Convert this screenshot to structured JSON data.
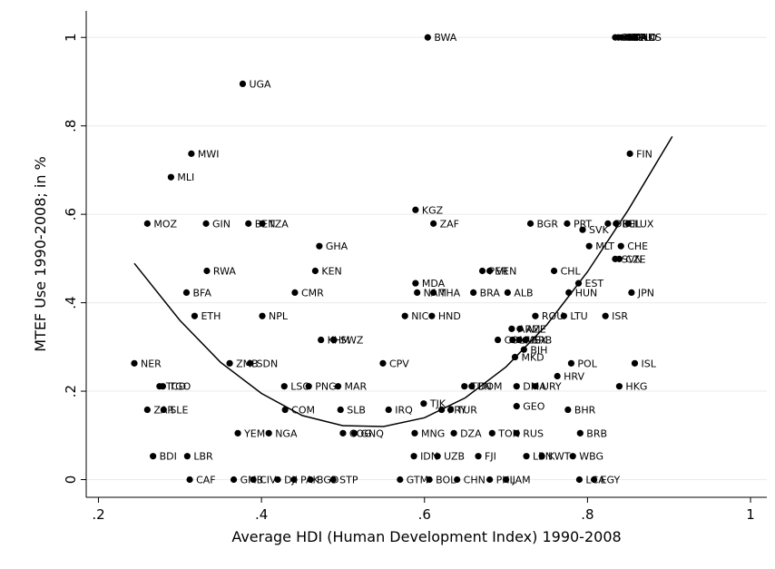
{
  "chart_data": {
    "type": "scatter",
    "x_label": "Average HDI (Human Development Index) 1990-2008",
    "y_label": "MTEF Use 1990-2008; in %",
    "xlim": [
      0.185,
      1.02
    ],
    "ylim": [
      -0.04,
      1.06
    ],
    "xticks": [
      {
        "value": 0.2,
        "label": ".2"
      },
      {
        "value": 0.4,
        "label": ".4"
      },
      {
        "value": 0.6,
        "label": ".6"
      },
      {
        "value": 0.8,
        "label": ".8"
      },
      1
    ],
    "yticks": [
      0,
      {
        "value": 0.2,
        "label": ".2"
      },
      {
        "value": 0.4,
        "label": ".4"
      },
      {
        "value": 0.6,
        "label": ".6"
      },
      {
        "value": 0.8,
        "label": ".8"
      },
      1
    ],
    "grid": true,
    "color": "#000000",
    "line_color": "#000000",
    "labels": [
      "BWA",
      "SGP",
      "GBR",
      "IRL",
      "DNK",
      "NLD",
      "AUS",
      "UGA",
      "MWI",
      "MLI",
      "FIN",
      "KGZ",
      "MOZ",
      "GIN",
      "BEN",
      "TZA",
      "ZAF",
      "BGR",
      "PRT",
      "DEU",
      "BEL",
      "LUX",
      "SVK",
      "GHA",
      "MLT",
      "CHE",
      "RWA",
      "KEN",
      "PER",
      "VEN",
      "CHL",
      "SVN",
      "CZE",
      "MDA",
      "EST",
      "BFA",
      "CMR",
      "NAM",
      "THA",
      "BRA",
      "ALB",
      "HUN",
      "JPN",
      "ETH",
      "NPL",
      "NIC",
      "HND",
      "ROU",
      "LTU",
      "ISR",
      "KHM",
      "SWZ",
      "ARM",
      "AZE",
      "COL",
      "MUS",
      "MEX",
      "SRB",
      "BIH",
      "MKD",
      "NER",
      "ZMB",
      "SDN",
      "CPV",
      "POL",
      "ISL",
      "HRV",
      "TCD",
      "TGO",
      "LSO",
      "PNG",
      "MAR",
      "TUN",
      "DOM",
      "DMA",
      "URY",
      "HKG",
      "ZAR",
      "SLE",
      "COM",
      "SLB",
      "IRQ",
      "PRY",
      "TUR",
      "GEO",
      "BHR",
      "TJK",
      "YEM",
      "NGA",
      "COG",
      "GNQ",
      "MNG",
      "DZA",
      "TON",
      "RUS",
      "BRB",
      "BDI",
      "LBR",
      "IDN",
      "UZB",
      "FJI",
      "LBN",
      "KWT",
      "WBG",
      "CAF",
      "GMB",
      "CIV",
      "DJI",
      "PAK",
      "BGD",
      "STP",
      "GTM",
      "BOL",
      "CHN",
      "PHL",
      "JAM",
      "LCA",
      "EGY"
    ],
    "x": [
      0.604,
      0.834,
      0.838,
      0.842,
      0.848,
      0.852,
      0.858,
      0.377,
      0.314,
      0.289,
      0.852,
      0.589,
      0.26,
      0.332,
      0.384,
      0.401,
      0.611,
      0.73,
      0.775,
      0.825,
      0.835,
      0.85,
      0.794,
      0.471,
      0.802,
      0.841,
      0.333,
      0.466,
      0.671,
      0.68,
      0.759,
      0.834,
      0.839,
      0.589,
      0.789,
      0.308,
      0.441,
      0.591,
      0.611,
      0.66,
      0.702,
      0.777,
      0.854,
      0.318,
      0.401,
      0.576,
      0.609,
      0.736,
      0.771,
      0.822,
      0.473,
      0.489,
      0.707,
      0.717,
      0.69,
      0.708,
      0.716,
      0.724,
      0.722,
      0.711,
      0.244,
      0.361,
      0.386,
      0.549,
      0.78,
      0.858,
      0.763,
      0.275,
      0.279,
      0.428,
      0.458,
      0.494,
      0.649,
      0.658,
      0.713,
      0.736,
      0.839,
      0.26,
      0.28,
      0.429,
      0.497,
      0.556,
      0.621,
      0.632,
      0.713,
      0.776,
      0.599,
      0.371,
      0.409,
      0.5,
      0.514,
      0.588,
      0.636,
      0.683,
      0.713,
      0.791,
      0.267,
      0.309,
      0.587,
      0.616,
      0.666,
      0.725,
      0.744,
      0.782,
      0.312,
      0.366,
      0.39,
      0.42,
      0.44,
      0.46,
      0.488,
      0.57,
      0.606,
      0.64,
      0.68,
      0.7,
      0.79,
      0.808
    ],
    "values": [
      1,
      1,
      1,
      1,
      1,
      1,
      1,
      0.895,
      0.737,
      0.684,
      0.737,
      0.61,
      0.579,
      0.579,
      0.579,
      0.579,
      0.579,
      0.579,
      0.579,
      0.579,
      0.579,
      0.579,
      0.565,
      0.528,
      0.528,
      0.528,
      0.472,
      0.472,
      0.472,
      0.472,
      0.472,
      0.499,
      0.499,
      0.444,
      0.444,
      0.423,
      0.423,
      0.423,
      0.423,
      0.423,
      0.423,
      0.423,
      0.423,
      0.37,
      0.37,
      0.37,
      0.37,
      0.37,
      0.37,
      0.37,
      0.316,
      0.316,
      0.341,
      0.341,
      0.316,
      0.316,
      0.316,
      0.316,
      0.294,
      0.277,
      0.263,
      0.263,
      0.263,
      0.263,
      0.263,
      0.263,
      0.234,
      0.211,
      0.211,
      0.211,
      0.211,
      0.211,
      0.211,
      0.211,
      0.211,
      0.211,
      0.211,
      0.158,
      0.158,
      0.158,
      0.158,
      0.158,
      0.158,
      0.158,
      0.166,
      0.158,
      0.172,
      0.105,
      0.105,
      0.105,
      0.105,
      0.105,
      0.105,
      0.105,
      0.105,
      0.105,
      0.053,
      0.053,
      0.053,
      0.053,
      0.053,
      0.053,
      0.053,
      0.053,
      0,
      0,
      0,
      0,
      0,
      0,
      0,
      0,
      0,
      0,
      0,
      0,
      0,
      0
    ],
    "fit": {
      "x": [
        0.244,
        0.3,
        0.35,
        0.4,
        0.45,
        0.5,
        0.55,
        0.6,
        0.65,
        0.7,
        0.75,
        0.8,
        0.85,
        0.904
      ],
      "y": [
        0.489,
        0.36,
        0.265,
        0.195,
        0.145,
        0.122,
        0.12,
        0.14,
        0.185,
        0.255,
        0.35,
        0.47,
        0.61,
        0.776
      ]
    }
  }
}
